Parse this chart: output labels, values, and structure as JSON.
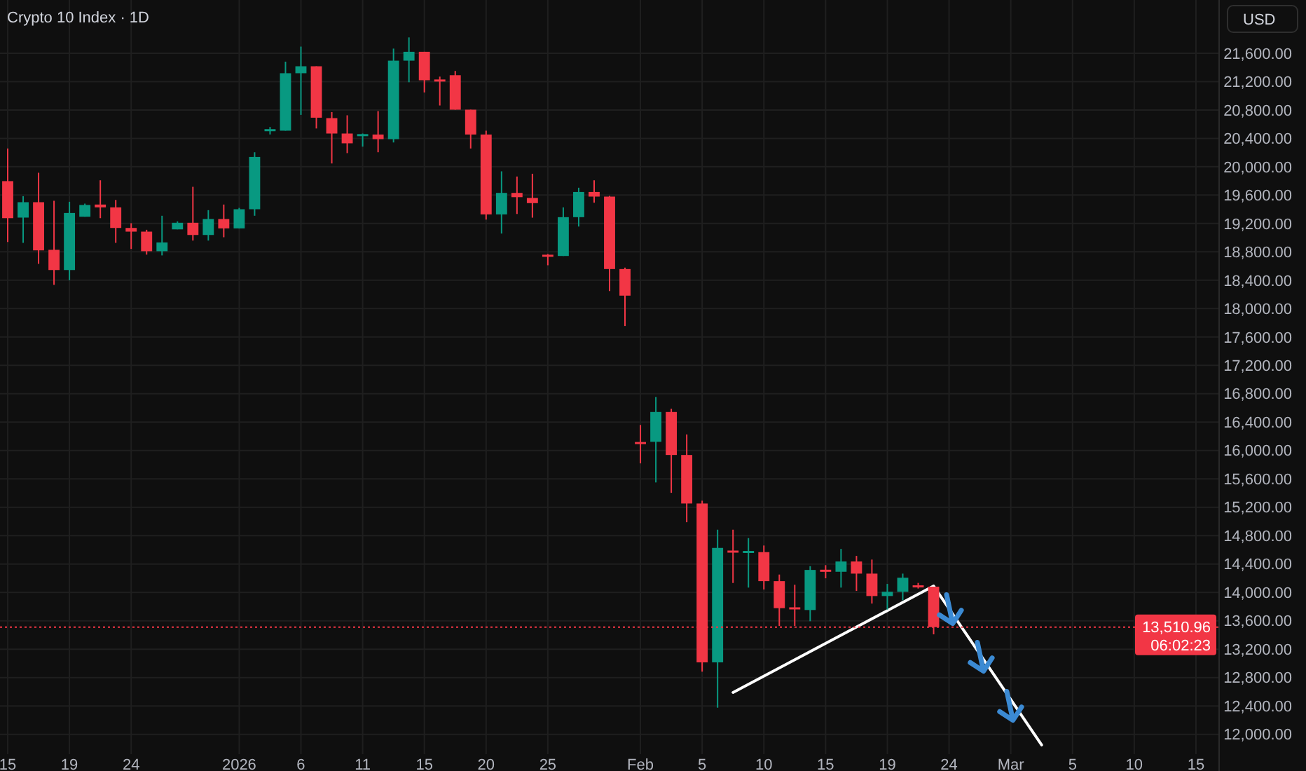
{
  "chart_data": {
    "type": "candlestick",
    "title": "Crypto 10 Index · 1D",
    "ylabel": "USD",
    "categories": [
      "15",
      null,
      null,
      null,
      "19",
      null,
      null,
      null,
      "24",
      null,
      null,
      null,
      null,
      null,
      null,
      "2026",
      null,
      null,
      null,
      "6",
      null,
      null,
      null,
      "11",
      null,
      null,
      null,
      "15",
      null,
      null,
      null,
      "20",
      null,
      null,
      null,
      "25",
      null,
      null,
      null,
      null,
      null,
      "Feb",
      null,
      null,
      null,
      "5",
      null,
      null,
      null,
      "10",
      null,
      null,
      null,
      "15",
      null,
      null,
      null,
      "19",
      null,
      null,
      null,
      "24",
      null,
      null,
      null,
      "Mar",
      null,
      null,
      null,
      "5",
      null,
      null,
      null,
      "10",
      null,
      null,
      null,
      "15",
      null
    ],
    "colors": [
      "#f23645",
      "#089981",
      "#f23645",
      "#f23645",
      "#089981",
      "#089981",
      "#f23645",
      "#f23645",
      "#f23645",
      "#f23645",
      "#089981",
      "#089981",
      "#f23645",
      "#089981",
      "#f23645",
      "#089981",
      "#089981",
      "#089981",
      "#089981",
      "#089981",
      "#f23645",
      "#f23645",
      "#f23645",
      "#089981",
      "#f23645",
      "#089981",
      "#089981",
      "#f23645",
      "#f23645",
      "#f23645",
      "#f23645",
      "#f23645",
      "#089981",
      "#f23645",
      "#f23645",
      "#f23645",
      "#089981",
      "#089981",
      "#f23645",
      "#f23645",
      "#f23645",
      "#f23645",
      "#089981",
      "#f23645",
      "#f23645",
      "#f23645",
      "#089981",
      "#f23645",
      "#089981",
      "#f23645",
      "#f23645",
      "#f23645",
      "#089981",
      "#f23645",
      "#089981",
      "#f23645",
      "#f23645",
      "#089981",
      "#089981",
      "#f23645",
      "#f23645",
      null,
      null,
      null,
      null,
      null,
      null,
      null,
      null,
      null,
      null,
      null,
      null,
      null,
      null,
      null,
      null,
      null,
      null
    ],
    "ohlc": [
      [
        19797,
        20257,
        18939,
        19275
      ],
      [
        19283,
        19585,
        18927,
        19500
      ],
      [
        19500,
        19915,
        18631,
        18821
      ],
      [
        18829,
        19520,
        18335,
        18544
      ],
      [
        18544,
        19506,
        18400,
        19348
      ],
      [
        19295,
        19480,
        19295,
        19461
      ],
      [
        19467,
        19809,
        19275,
        19427
      ],
      [
        19427,
        19532,
        18927,
        19137
      ],
      [
        19137,
        19204,
        18841,
        19085
      ],
      [
        19085,
        19111,
        18761,
        18809
      ],
      [
        18809,
        19309,
        18750,
        18933
      ],
      [
        19117,
        19230,
        19117,
        19210
      ],
      [
        19210,
        19717,
        18959,
        19038
      ],
      [
        19038,
        19388,
        18959,
        19263
      ],
      [
        19263,
        19467,
        19006,
        19131
      ],
      [
        19131,
        19420,
        19131,
        19401
      ],
      [
        19401,
        20204,
        19309,
        20138
      ],
      [
        20520,
        20560,
        20455,
        20530
      ],
      [
        20508,
        21481,
        20508,
        21318
      ],
      [
        21318,
        21693,
        20731,
        21416
      ],
      [
        21416,
        21416,
        20539,
        20691
      ],
      [
        20685,
        20770,
        20046,
        20468
      ],
      [
        20468,
        20725,
        20192,
        20330
      ],
      [
        20440,
        20468,
        20283,
        20460
      ],
      [
        20454,
        20784,
        20204,
        20389
      ],
      [
        20389,
        21665,
        20342,
        21495
      ],
      [
        21495,
        21823,
        21191,
        21620
      ],
      [
        21620,
        21620,
        21047,
        21219
      ],
      [
        21230,
        21270,
        20863,
        21210
      ],
      [
        21290,
        21350,
        20804,
        20804
      ],
      [
        20804,
        20804,
        20257,
        20454
      ],
      [
        20454,
        20508,
        19255,
        19328
      ],
      [
        19328,
        19935,
        19058,
        19631
      ],
      [
        19631,
        19862,
        19334,
        19571
      ],
      [
        19560,
        19901,
        19282,
        19487
      ],
      [
        18760,
        18769,
        18611,
        18740
      ],
      [
        18742,
        19427,
        18742,
        19289
      ],
      [
        19289,
        19704,
        19157,
        19644
      ],
      [
        19644,
        19809,
        19493,
        19579
      ],
      [
        19579,
        19590,
        18248,
        18558
      ],
      [
        18558,
        18578,
        17755,
        18183
      ],
      [
        16120,
        16360,
        15819,
        16100
      ],
      [
        16123,
        16755,
        15550,
        16543
      ],
      [
        16543,
        16589,
        15404,
        15937
      ],
      [
        15937,
        16227,
        14989,
        15253
      ],
      [
        15253,
        15293,
        12883,
        13014
      ],
      [
        13014,
        14884,
        12375,
        14627
      ],
      [
        14590,
        14884,
        14133,
        14574
      ],
      [
        14570,
        14766,
        14068,
        14585
      ],
      [
        14568,
        14661,
        14041,
        14159
      ],
      [
        14159,
        14252,
        13527,
        13778
      ],
      [
        13790,
        14108,
        13527,
        13770
      ],
      [
        13752,
        14370,
        13594,
        14317
      ],
      [
        14320,
        14384,
        14199,
        14305
      ],
      [
        14291,
        14613,
        14068,
        14436
      ],
      [
        14436,
        14515,
        14021,
        14265
      ],
      [
        14265,
        14463,
        13843,
        13949
      ],
      [
        13949,
        14120,
        13758,
        14009
      ],
      [
        14009,
        14265,
        13890,
        14207
      ],
      [
        14100,
        14134,
        14055,
        14090
      ],
      [
        14081,
        14081,
        13409,
        13510.96
      ],
      null,
      null,
      null,
      null,
      null,
      null,
      null,
      null,
      null,
      null,
      null,
      null,
      null,
      null,
      null,
      null,
      null,
      null
    ],
    "series": [
      {
        "type": "line",
        "color": "#ffffff",
        "values": [
          null,
          null,
          null,
          null,
          null,
          null,
          null,
          null,
          null,
          null,
          null,
          null,
          null,
          null,
          null,
          null,
          null,
          null,
          null,
          null,
          null,
          null,
          null,
          null,
          null,
          null,
          null,
          null,
          null,
          null,
          null,
          null,
          null,
          null,
          null,
          null,
          null,
          null,
          null,
          null,
          null,
          null,
          null,
          null,
          null,
          null,
          null,
          12590,
          null,
          null,
          null,
          null,
          null,
          null,
          null,
          null,
          null,
          null,
          null,
          null,
          14090,
          null,
          null,
          null,
          null,
          null,
          null,
          11850,
          null,
          null,
          null,
          null,
          null,
          null,
          null,
          null,
          null,
          null,
          null
        ]
      }
    ],
    "ylim": [
      11720,
      22350
    ],
    "yticks": [
      {
        "value": 12000,
        "label": "12,000.00"
      },
      {
        "value": 12400,
        "label": "12,400.00"
      },
      {
        "value": 12800,
        "label": "12,800.00"
      },
      {
        "value": 13200,
        "label": "13,200.00"
      },
      {
        "value": 13600,
        "label": "13,600.00"
      },
      {
        "value": 14000,
        "label": "14,000.00"
      },
      {
        "value": 14400,
        "label": "14,400.00"
      },
      {
        "value": 14800,
        "label": "14,800.00"
      },
      {
        "value": 15200,
        "label": "15,200.00"
      },
      {
        "value": 15600,
        "label": "15,600.00"
      },
      {
        "value": 16000,
        "label": "16,000.00"
      },
      {
        "value": 16400,
        "label": "16,400.00"
      },
      {
        "value": 16800,
        "label": "16,800.00"
      },
      {
        "value": 17200,
        "label": "17,200.00"
      },
      {
        "value": 17600,
        "label": "17,600.00"
      },
      {
        "value": 18000,
        "label": "18,000.00"
      },
      {
        "value": 18400,
        "label": "18,400.00"
      },
      {
        "value": 18800,
        "label": "18,800.00"
      },
      {
        "value": 19200,
        "label": "19,200.00"
      },
      {
        "value": 19600,
        "label": "19,600.00"
      },
      {
        "value": 20000,
        "label": "20,000.00"
      },
      {
        "value": 20400,
        "label": "20,400.00"
      },
      {
        "value": 20800,
        "label": "20,800.00"
      },
      {
        "value": 21200,
        "label": "21,200.00"
      },
      {
        "value": 21600,
        "label": "21,600.00"
      }
    ],
    "grid": true,
    "ref_lines": [
      {
        "axis": "y",
        "value": 13510.96,
        "label": "13,510.96",
        "color": "#f23645",
        "line_style": "dotted"
      }
    ],
    "annotations": [
      "06:02:23"
    ]
  }
}
